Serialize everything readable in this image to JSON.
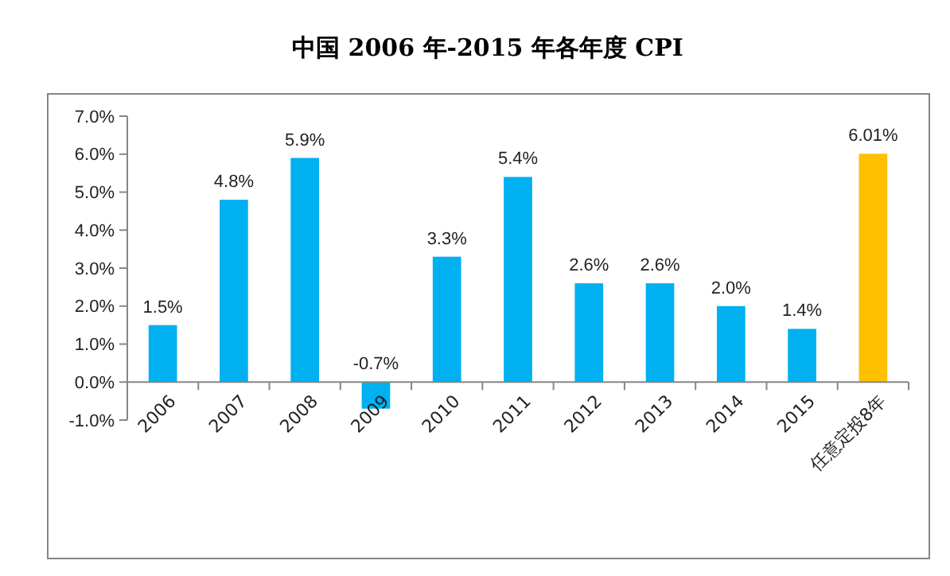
{
  "chart_data": {
    "type": "bar",
    "title": "中国 2006 年-2015 年各年度 CPI",
    "categories": [
      "2006",
      "2007",
      "2008",
      "2009",
      "2010",
      "2011",
      "2012",
      "2013",
      "2014",
      "2015",
      "任意定投8年"
    ],
    "values": [
      1.5,
      4.8,
      5.9,
      -0.7,
      3.3,
      5.4,
      2.6,
      2.6,
      2.0,
      1.4,
      6.01
    ],
    "colors": [
      "#00b0f0",
      "#00b0f0",
      "#00b0f0",
      "#00b0f0",
      "#00b0f0",
      "#00b0f0",
      "#00b0f0",
      "#00b0f0",
      "#00b0f0",
      "#00b0f0",
      "#ffc000"
    ],
    "value_labels": [
      "1.5%",
      "4.8%",
      "5.9%",
      "-0.7%",
      "3.3%",
      "5.4%",
      "2.6%",
      "2.6%",
      "2.0%",
      "1.4%",
      "6.01%"
    ],
    "ylim": [
      -1,
      7
    ],
    "yticks": [
      {
        "value": -1,
        "label": "-1.0%"
      },
      {
        "value": 0,
        "label": "0.0%"
      },
      {
        "value": 1,
        "label": "1.0%"
      },
      {
        "value": 2,
        "label": "2.0%"
      },
      {
        "value": 3,
        "label": "3.0%"
      },
      {
        "value": 4,
        "label": "4.0%"
      },
      {
        "value": 5,
        "label": "5.0%"
      },
      {
        "value": 6,
        "label": "6.0%"
      },
      {
        "value": 7,
        "label": "7.0%"
      }
    ],
    "grid": false
  }
}
